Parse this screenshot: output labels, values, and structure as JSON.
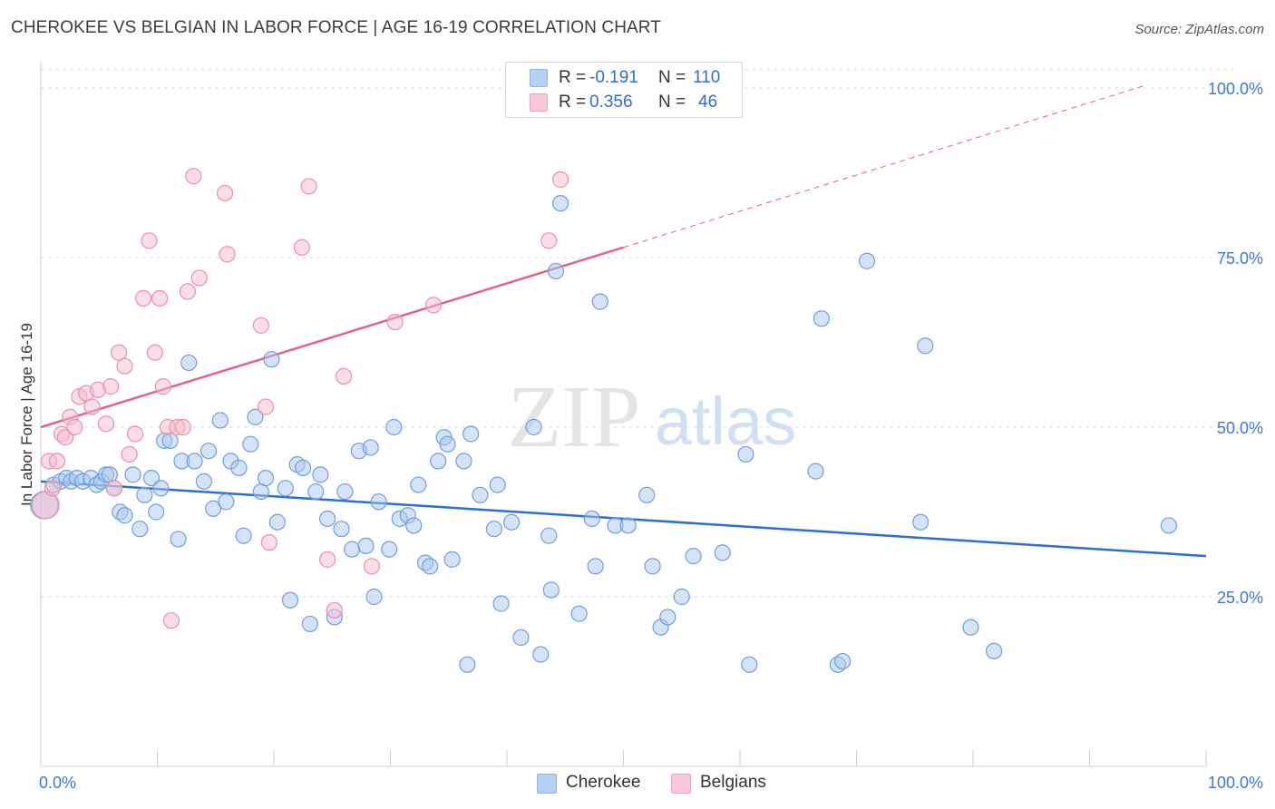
{
  "title": "CHEROKEE VS BELGIAN IN LABOR FORCE | AGE 16-19 CORRELATION CHART",
  "source": "Source: ZipAtlas.com",
  "watermark": {
    "zip": "ZIP",
    "atlas": "atlas"
  },
  "legend": {
    "rows": [
      {
        "r_label": "R =",
        "r_value": "-0.191",
        "n_label": "N =",
        "n_value": "110"
      },
      {
        "r_label": "R =",
        "r_value": "0.356",
        "n_label": "N =",
        "n_value": "46"
      }
    ]
  },
  "colors": {
    "cherokee_fill": "#a9c7f0",
    "cherokee_stroke": "#6f9fe0",
    "cherokee_line": "#2b6fd0",
    "belgians_fill": "#f7bccb",
    "belgians_stroke": "#eb90ab",
    "belgians_line": "#e0628d",
    "tick_label": "#3a78d2",
    "grid": "#dddddd"
  },
  "chart_data": {
    "type": "scatter",
    "title": "CHEROKEE VS BELGIAN IN LABOR FORCE | AGE 16-19 CORRELATION CHART",
    "xlabel": "",
    "ylabel": "In Labor Force | Age 16-19",
    "xlim": [
      0,
      100
    ],
    "ylim": [
      0,
      103
    ],
    "x_tick_labels": [
      {
        "value": 0,
        "label": "0.0%"
      },
      {
        "value": 100,
        "label": "100.0%"
      }
    ],
    "y_tick_labels": [
      {
        "value": 25,
        "label": "25.0%"
      },
      {
        "value": 50,
        "label": "50.0%"
      },
      {
        "value": 75,
        "label": "75.0%"
      },
      {
        "value": 100,
        "label": "100.0%"
      }
    ],
    "x_minor_ticks": [
      10,
      20,
      30,
      40,
      50,
      60,
      70,
      80,
      90,
      100
    ],
    "grid": "horizontal dashed",
    "legend_position": "bottom-center",
    "series": [
      {
        "name": "Cherokee",
        "points": [
          [
            0.3,
            38.5
          ],
          [
            1.1,
            41.5
          ],
          [
            1.7,
            42.0
          ],
          [
            2.2,
            42.5
          ],
          [
            2.6,
            42.0
          ],
          [
            3.1,
            42.5
          ],
          [
            3.6,
            42.0
          ],
          [
            4.3,
            42.5
          ],
          [
            4.8,
            41.5
          ],
          [
            5.2,
            42.0
          ],
          [
            5.6,
            43.0
          ],
          [
            5.9,
            43.0
          ],
          [
            6.3,
            41.0
          ],
          [
            6.8,
            37.5
          ],
          [
            7.2,
            37.0
          ],
          [
            7.9,
            43.0
          ],
          [
            8.5,
            35.0
          ],
          [
            8.9,
            40.0
          ],
          [
            9.5,
            42.5
          ],
          [
            9.9,
            37.5
          ],
          [
            10.3,
            41.0
          ],
          [
            10.6,
            48.0
          ],
          [
            11.1,
            48.0
          ],
          [
            11.8,
            33.5
          ],
          [
            12.1,
            45.0
          ],
          [
            12.7,
            59.5
          ],
          [
            13.2,
            45.0
          ],
          [
            14.0,
            42.0
          ],
          [
            14.4,
            46.5
          ],
          [
            14.8,
            38.0
          ],
          [
            15.4,
            51.0
          ],
          [
            15.9,
            39.0
          ],
          [
            16.3,
            45.0
          ],
          [
            17.0,
            44.0
          ],
          [
            17.4,
            34.0
          ],
          [
            18.0,
            47.5
          ],
          [
            18.4,
            51.5
          ],
          [
            18.9,
            40.5
          ],
          [
            19.3,
            42.5
          ],
          [
            19.8,
            60.0
          ],
          [
            20.3,
            36.0
          ],
          [
            21.0,
            41.0
          ],
          [
            21.4,
            24.5
          ],
          [
            22.0,
            44.5
          ],
          [
            22.5,
            44.0
          ],
          [
            23.1,
            21.0
          ],
          [
            23.6,
            40.5
          ],
          [
            24.0,
            43.0
          ],
          [
            24.6,
            36.5
          ],
          [
            25.2,
            22.0
          ],
          [
            25.8,
            35.0
          ],
          [
            26.1,
            40.5
          ],
          [
            26.7,
            32.0
          ],
          [
            27.3,
            46.5
          ],
          [
            27.9,
            32.5
          ],
          [
            28.3,
            47.0
          ],
          [
            28.6,
            25.0
          ],
          [
            29.0,
            39.0
          ],
          [
            29.9,
            32.0
          ],
          [
            30.3,
            50.0
          ],
          [
            30.8,
            36.5
          ],
          [
            31.5,
            37.0
          ],
          [
            32.0,
            35.5
          ],
          [
            32.4,
            41.5
          ],
          [
            33.0,
            30.0
          ],
          [
            33.4,
            29.5
          ],
          [
            34.1,
            45.0
          ],
          [
            34.6,
            48.5
          ],
          [
            34.9,
            47.5
          ],
          [
            35.3,
            30.5
          ],
          [
            36.3,
            45.0
          ],
          [
            36.6,
            15.0
          ],
          [
            36.9,
            49.0
          ],
          [
            37.7,
            40.0
          ],
          [
            38.9,
            35.0
          ],
          [
            39.2,
            41.5
          ],
          [
            39.5,
            24.0
          ],
          [
            40.4,
            36.0
          ],
          [
            41.2,
            19.0
          ],
          [
            42.3,
            50.0
          ],
          [
            42.9,
            16.5
          ],
          [
            43.6,
            34.0
          ],
          [
            43.8,
            26.0
          ],
          [
            44.2,
            73.0
          ],
          [
            44.6,
            83.0
          ],
          [
            46.2,
            22.5
          ],
          [
            47.3,
            36.5
          ],
          [
            47.6,
            29.5
          ],
          [
            48.0,
            68.5
          ],
          [
            49.3,
            35.5
          ],
          [
            50.4,
            35.5
          ],
          [
            52.0,
            40.0
          ],
          [
            52.5,
            29.5
          ],
          [
            53.2,
            20.5
          ],
          [
            53.8,
            22.0
          ],
          [
            55.0,
            25.0
          ],
          [
            56.0,
            31.0
          ],
          [
            58.5,
            31.5
          ],
          [
            60.5,
            46.0
          ],
          [
            60.8,
            15.0
          ],
          [
            66.5,
            43.5
          ],
          [
            67.0,
            66.0
          ],
          [
            68.4,
            15.0
          ],
          [
            68.8,
            15.5
          ],
          [
            70.9,
            74.5
          ],
          [
            75.5,
            36.0
          ],
          [
            75.9,
            62.0
          ],
          [
            79.8,
            20.5
          ],
          [
            81.8,
            17.0
          ],
          [
            96.8,
            35.5
          ]
        ]
      },
      {
        "name": "Belgians",
        "points": [
          [
            0.4,
            38.5
          ],
          [
            0.7,
            45.0
          ],
          [
            1.0,
            41.0
          ],
          [
            1.4,
            45.0
          ],
          [
            1.8,
            49.0
          ],
          [
            2.1,
            48.5
          ],
          [
            2.5,
            51.5
          ],
          [
            2.9,
            50.0
          ],
          [
            3.3,
            54.5
          ],
          [
            3.9,
            55.0
          ],
          [
            4.4,
            53.0
          ],
          [
            4.9,
            55.5
          ],
          [
            5.6,
            50.5
          ],
          [
            6.0,
            56.0
          ],
          [
            6.3,
            41.0
          ],
          [
            6.7,
            61.0
          ],
          [
            7.2,
            59.0
          ],
          [
            7.6,
            46.0
          ],
          [
            8.1,
            49.0
          ],
          [
            8.8,
            69.0
          ],
          [
            9.3,
            77.5
          ],
          [
            9.8,
            61.0
          ],
          [
            10.2,
            69.0
          ],
          [
            10.5,
            56.0
          ],
          [
            10.9,
            50.0
          ],
          [
            11.2,
            21.5
          ],
          [
            11.7,
            50.0
          ],
          [
            12.2,
            50.0
          ],
          [
            12.6,
            70.0
          ],
          [
            13.1,
            87.0
          ],
          [
            13.6,
            72.0
          ],
          [
            15.8,
            84.5
          ],
          [
            16.0,
            75.5
          ],
          [
            18.9,
            65.0
          ],
          [
            19.3,
            53.0
          ],
          [
            19.6,
            33.0
          ],
          [
            22.4,
            76.5
          ],
          [
            23.0,
            85.5
          ],
          [
            24.6,
            30.5
          ],
          [
            25.2,
            23.0
          ],
          [
            26.0,
            57.5
          ],
          [
            28.4,
            29.5
          ],
          [
            30.4,
            65.5
          ],
          [
            33.7,
            68.0
          ],
          [
            43.6,
            77.5
          ],
          [
            44.6,
            86.5
          ]
        ]
      }
    ],
    "trend_lines": [
      {
        "series": "Cherokee",
        "from": [
          0,
          42.0
        ],
        "to": [
          100,
          31.0
        ],
        "style": "solid"
      },
      {
        "series": "Belgians",
        "from": [
          0,
          50.0
        ],
        "to": [
          50,
          76.5
        ],
        "style": "solid"
      },
      {
        "series": "Belgians",
        "from": [
          50,
          76.5
        ],
        "to": [
          95,
          100.5
        ],
        "style": "dashed"
      }
    ]
  }
}
